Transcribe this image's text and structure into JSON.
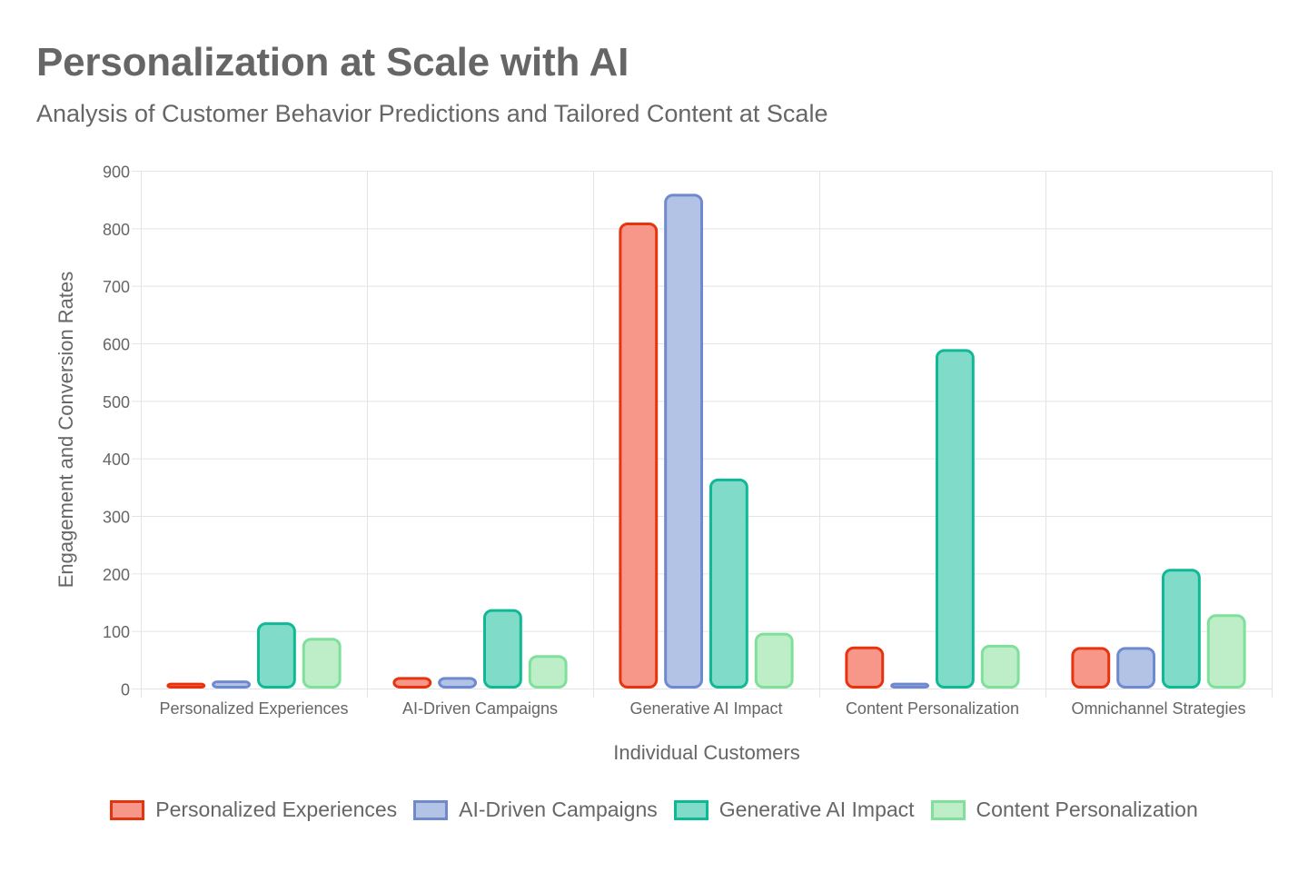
{
  "header": {
    "title": "Personalization at Scale with AI",
    "subtitle": "Analysis of Customer Behavior Predictions and Tailored Content at Scale"
  },
  "legend": [
    {
      "label": "Personalized Experiences",
      "border": "#e8330f",
      "fill": "#f6978a"
    },
    {
      "label": "AI-Driven Campaigns",
      "border": "#6f89cf",
      "fill": "#b3c3e6"
    },
    {
      "label": "Generative AI Impact",
      "border": "#10b995",
      "fill": "#80dcc8"
    },
    {
      "label": "Content Personalization",
      "border": "#7ee09a",
      "fill": "#bdeec8"
    }
  ],
  "chart_data": {
    "type": "bar",
    "title": "Personalization at Scale with AI",
    "subtitle": "Analysis of Customer Behavior Predictions and Tailored Content at Scale",
    "xlabel": "Individual Customers",
    "ylabel": "Engagement and Conversion Rates",
    "ylim": [
      0,
      900
    ],
    "yticks": [
      0,
      100,
      200,
      300,
      400,
      500,
      600,
      700,
      800,
      900
    ],
    "grid": true,
    "legend_position": "bottom",
    "categories": [
      "Personalized Experiences",
      "AI-Driven Campaigns",
      "Generative AI Impact",
      "Content Personalization",
      "Omnichannel Strategies"
    ],
    "series": [
      {
        "name": "Personalized Experiences",
        "values": [
          10,
          20,
          810,
          73,
          72
        ]
      },
      {
        "name": "AI-Driven Campaigns",
        "values": [
          14,
          20,
          860,
          10,
          72
        ]
      },
      {
        "name": "Generative AI Impact",
        "values": [
          115,
          138,
          365,
          590,
          208
        ]
      },
      {
        "name": "Content Personalization",
        "values": [
          88,
          58,
          97,
          76,
          129
        ]
      }
    ]
  }
}
